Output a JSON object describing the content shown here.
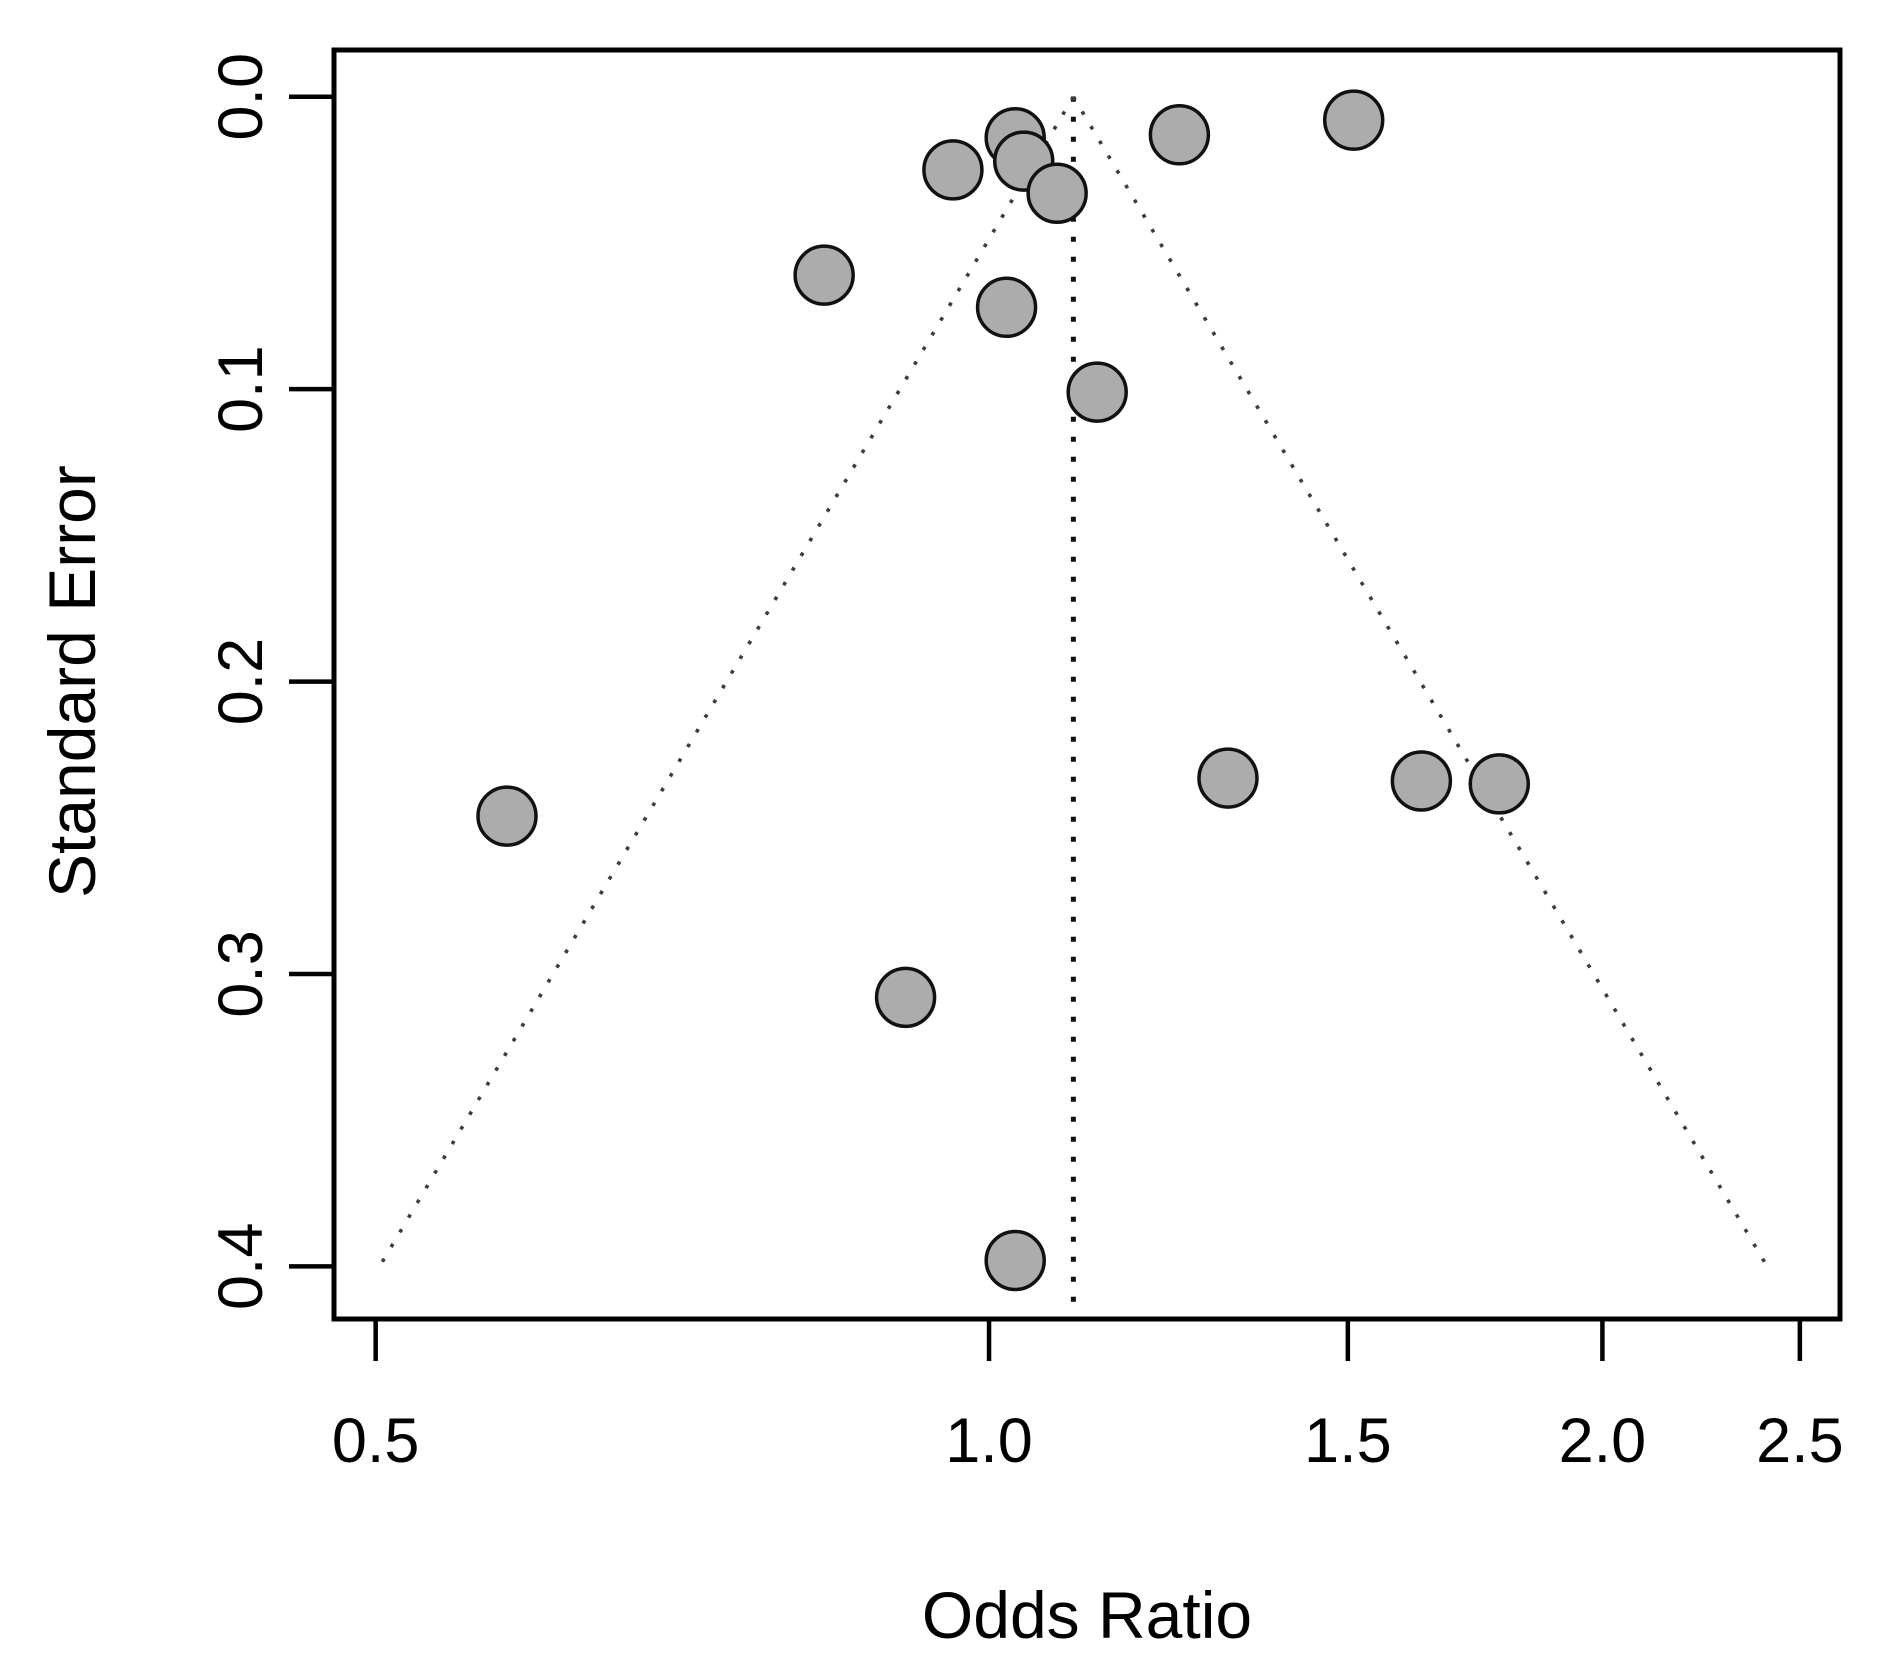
{
  "chart_data": {
    "type": "scatter",
    "subtype": "funnel-plot",
    "title": "",
    "xlabel": "Odds Ratio",
    "ylabel": "Standard Error",
    "x_scale": "log",
    "y_inverted": true,
    "grid": false,
    "legend_position": "none",
    "xlim": [
      0.477,
      2.616
    ],
    "ylim": [
      -0.016,
      0.418
    ],
    "x_ticks": [
      0.5,
      1.0,
      1.5,
      2.0,
      2.5
    ],
    "x_tick_labels": [
      "0.5",
      "1.0",
      "1.5",
      "2.0",
      "2.5"
    ],
    "y_ticks": [
      0.0,
      0.1,
      0.2,
      0.3,
      0.4
    ],
    "y_tick_labels": [
      "0.0",
      "0.1",
      "0.2",
      "0.3",
      "0.4"
    ],
    "points": [
      {
        "or": 1.03,
        "se": 0.014
      },
      {
        "or": 1.04,
        "se": 0.022
      },
      {
        "or": 0.96,
        "se": 0.025
      },
      {
        "or": 1.08,
        "se": 0.033
      },
      {
        "or": 1.24,
        "se": 0.013
      },
      {
        "or": 1.51,
        "se": 0.008
      },
      {
        "or": 0.83,
        "se": 0.061
      },
      {
        "or": 1.02,
        "se": 0.072
      },
      {
        "or": 1.13,
        "se": 0.101
      },
      {
        "or": 0.58,
        "se": 0.246
      },
      {
        "or": 1.31,
        "se": 0.233
      },
      {
        "or": 1.63,
        "se": 0.234
      },
      {
        "or": 1.78,
        "se": 0.235
      },
      {
        "or": 0.91,
        "se": 0.308
      },
      {
        "or": 1.03,
        "se": 0.398
      }
    ],
    "funnel": {
      "center_or": 1.1,
      "z": 1.96,
      "se_top": 0.0,
      "se_bottom": 0.4,
      "line_style": "dotted"
    },
    "colors": {
      "point_fill": "#ACACAC",
      "point_stroke": "#111111",
      "axis": "#000000",
      "funnel_line": "#3d3d3d",
      "center_line": "#111111",
      "background": "#ffffff"
    }
  }
}
